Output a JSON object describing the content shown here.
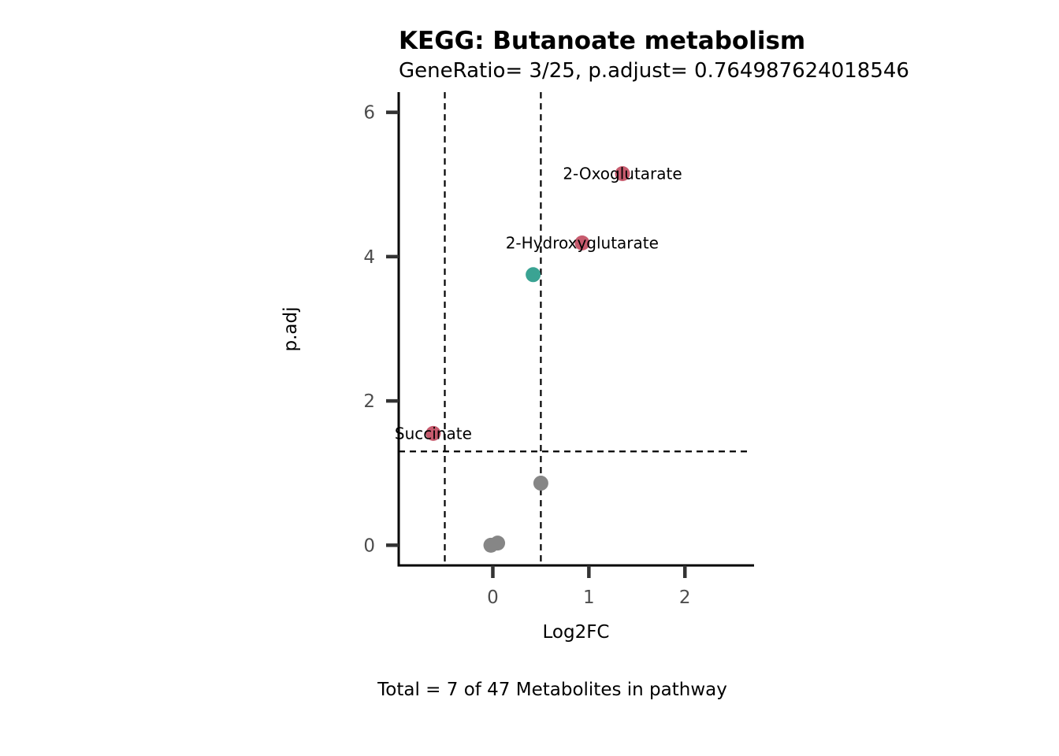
{
  "chart_data": {
    "type": "scatter",
    "title": "KEGG: Butanoate metabolism",
    "subtitle": "GeneRatio= 3/25, p.adjust= 0.764987624018546",
    "xlabel": "Log2FC",
    "ylabel": "p.adj",
    "caption": "Total = 7 of 47 Metabolites in pathway",
    "xlim": [
      -0.98,
      2.72
    ],
    "ylim": [
      -0.28,
      6.28
    ],
    "x_ticks": [
      0,
      1,
      2
    ],
    "y_ticks": [
      0,
      2,
      4,
      6
    ],
    "grid": false,
    "thresholds": {
      "x": [
        -0.5,
        0.5
      ],
      "y": [
        1.3
      ]
    },
    "colors": {
      "up": "#c75b6e",
      "neutral_up": "#3aa393",
      "ns": "#868686",
      "axis": "#000000",
      "tick": "#333333",
      "threshold": "#000000"
    },
    "points": [
      {
        "x": 1.35,
        "y": 5.15,
        "group": "up",
        "label": "2-Oxoglutarate"
      },
      {
        "x": 0.93,
        "y": 4.19,
        "group": "up",
        "label": "2-Hydroxyglutarate"
      },
      {
        "x": 0.42,
        "y": 3.75,
        "group": "neutral_up",
        "label": ""
      },
      {
        "x": -0.62,
        "y": 1.55,
        "group": "up",
        "label": "Succinate"
      },
      {
        "x": 0.5,
        "y": 0.86,
        "group": "ns",
        "label": ""
      },
      {
        "x": 0.05,
        "y": 0.03,
        "group": "ns",
        "label": ""
      },
      {
        "x": -0.02,
        "y": 0.0,
        "group": "ns",
        "label": ""
      }
    ]
  }
}
